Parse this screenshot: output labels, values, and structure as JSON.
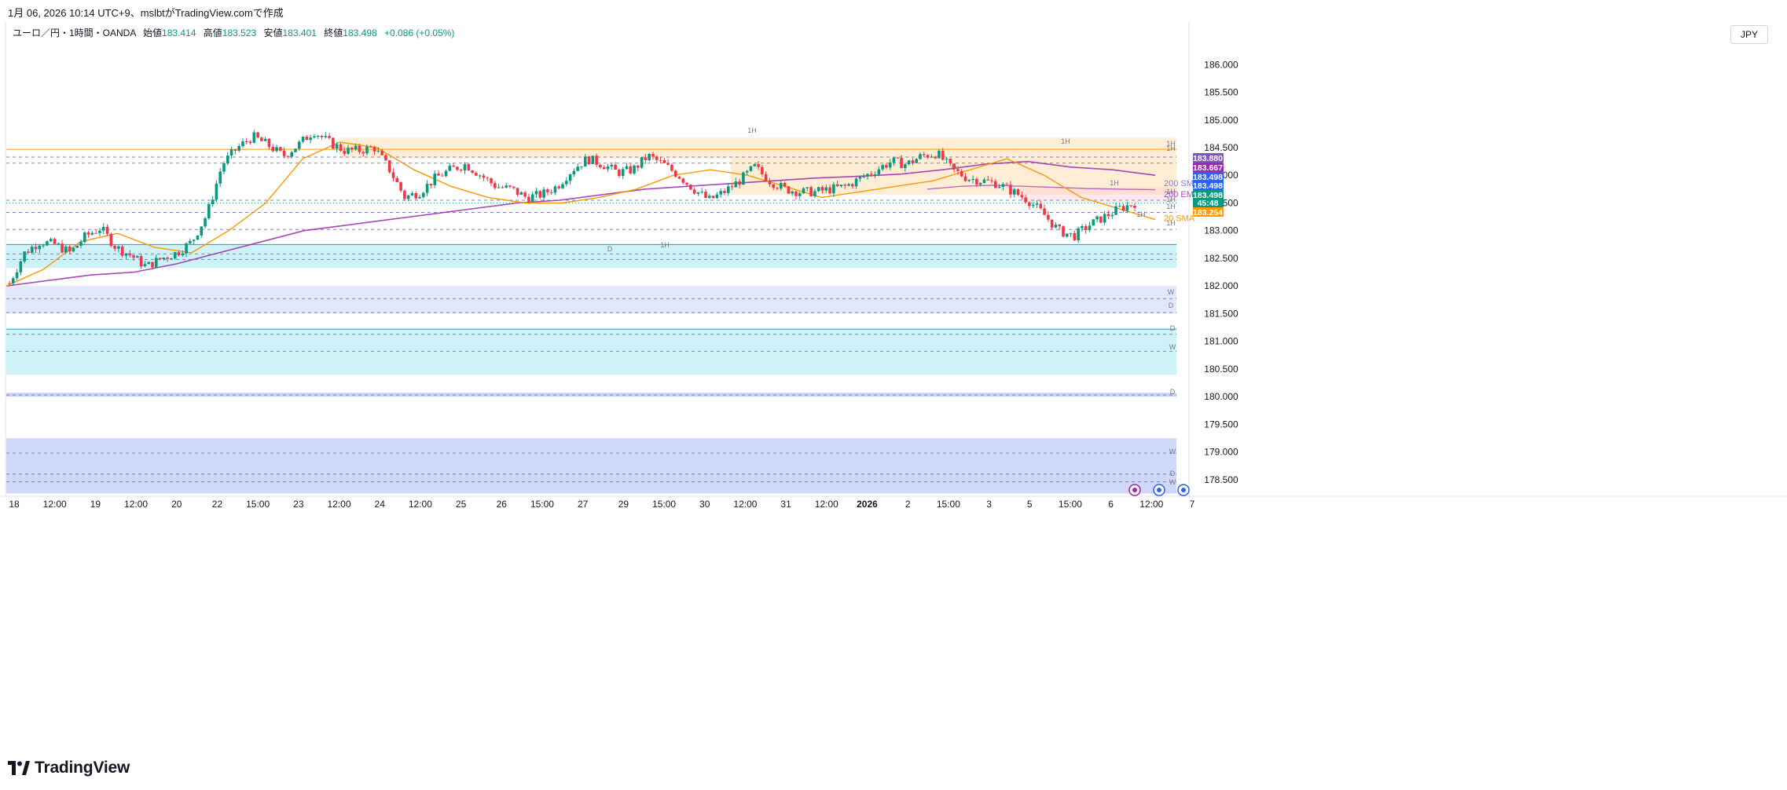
{
  "caption": "1月 06, 2026 10:14 UTC+9、mslbtがTradingView.comで作成",
  "symbol": {
    "name": "ユーロ／円・1時間・OANDA",
    "open_label": "始値",
    "open": "183.414",
    "high_label": "高値",
    "high": "183.523",
    "low_label": "安値",
    "low": "183.401",
    "close_label": "終値",
    "close": "183.498",
    "change": "+0.086 (+0.05%)"
  },
  "currency": "JPY",
  "brand": "TradingView",
  "colors": {
    "up": "#089981",
    "down": "#f23645",
    "ema20": "#ff9800",
    "sma200": "#9c27b0",
    "resist_zone": "#ffe0b2",
    "support_zone": "#b2ebf2",
    "blue_zone": "#bbc8f7"
  },
  "chart_data": {
    "type": "candlestick",
    "title": "ユーロ／円・1時間・OANDA",
    "ylim": [
      178.2,
      186.6
    ],
    "y_ticks": [
      "186.000",
      "185.500",
      "185.000",
      "184.500",
      "184.000",
      "183.500",
      "183.000",
      "182.500",
      "182.000",
      "181.500",
      "181.000",
      "180.500",
      "180.000",
      "179.500",
      "179.000",
      "178.500"
    ],
    "x_ticks": [
      "18",
      "12:00",
      "19",
      "12:00",
      "20",
      "22",
      "15:00",
      "23",
      "12:00",
      "24",
      "12:00",
      "25",
      "26",
      "15:00",
      "27",
      "29",
      "15:00",
      "30",
      "12:00",
      "31",
      "12:00",
      "2026",
      "2",
      "15:00",
      "3",
      "5",
      "15:00",
      "6",
      "12:00",
      "7"
    ],
    "series": [
      {
        "name": "20 SMA",
        "values": [
          182.0,
          182.3,
          182.8,
          182.95,
          182.7,
          182.6,
          183.0,
          183.5,
          184.3,
          184.6,
          184.5,
          184.1,
          183.8,
          183.6,
          183.5,
          183.5,
          183.6,
          183.75,
          184.0,
          184.1,
          184.0,
          183.8,
          183.6,
          183.7,
          183.8,
          183.9,
          184.1,
          184.3,
          184.0,
          183.6,
          183.4,
          183.2
        ]
      },
      {
        "name": "200 SMA",
        "values": [
          182.0,
          182.1,
          182.2,
          182.25,
          182.4,
          182.6,
          182.8,
          183.0,
          183.1,
          183.2,
          183.3,
          183.4,
          183.5,
          183.55,
          183.65,
          183.75,
          183.8,
          183.85,
          183.9,
          183.95,
          183.98,
          184.02,
          184.1,
          184.2,
          184.25,
          184.15,
          184.1,
          184.0
        ]
      },
      {
        "name": "200 EMA",
        "values": [
          183.75,
          183.8,
          183.82,
          183.8,
          183.78,
          183.76,
          183.75,
          183.74
        ]
      }
    ],
    "price_labels": [
      {
        "value": "183.880",
        "color": "#7e57c2"
      },
      {
        "value": "183.667",
        "color": "#9c27b0"
      },
      {
        "value": "183.498",
        "color": "#2962ff"
      },
      {
        "value": "183.498",
        "color": "#2962ff"
      },
      {
        "value": "183.498",
        "color": "#089981"
      },
      {
        "value": "45:48",
        "color": "#089981"
      },
      {
        "value": "183.254",
        "color": "#ff9800"
      }
    ],
    "annotations": [
      "1H",
      "1H",
      "1H",
      "1H",
      "D",
      "1H",
      "1H",
      "1H",
      "1H",
      "1H",
      "D",
      "1H",
      "1H",
      "W",
      "D",
      "D",
      "W",
      "D",
      "W",
      "D",
      "W"
    ],
    "legend": "right-inline",
    "grid": false
  }
}
